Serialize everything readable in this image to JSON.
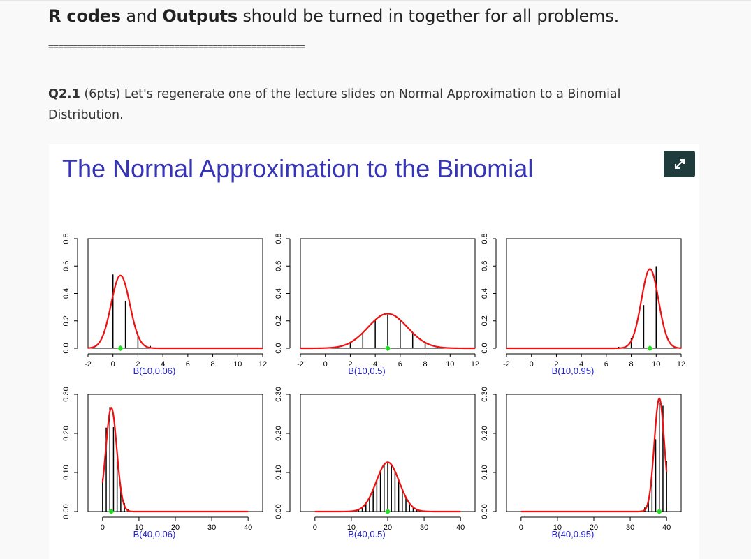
{
  "header": {
    "part1": "R codes",
    "part2": " and ",
    "part3": "Outputs",
    "part4": " should be turned in together for all problems.",
    "rule": "====================================================="
  },
  "question": {
    "label": "Q2.1",
    "text": " (6pts) Let's regenerate one of the lecture slides on Normal Approximation to a Binomial Distribution."
  },
  "slide": {
    "title": "The Normal Approximation to the Binomial",
    "expand_icon": "expand-arrows-icon"
  },
  "colors": {
    "curve": "#ee1111",
    "mean_marker": "#22dd22",
    "subtitle": "#2222cc",
    "title": "#3535b5"
  },
  "chart_data": [
    {
      "type": "bar",
      "subtitle": "B(10,0.06)",
      "n": 10,
      "p": 0.06,
      "xlim": [
        -2,
        12
      ],
      "xticks": [
        -2,
        0,
        2,
        4,
        6,
        8,
        10,
        12
      ],
      "ylim": [
        0,
        0.8
      ],
      "yticks": [
        "0.0",
        "0.2",
        "0.4",
        "0.6",
        "0.8"
      ],
      "ytick_values": [
        0,
        0.2,
        0.4,
        0.6,
        0.8
      ]
    },
    {
      "type": "bar",
      "subtitle": "B(10,0.5)",
      "n": 10,
      "p": 0.5,
      "xlim": [
        -2,
        12
      ],
      "xticks": [
        -2,
        0,
        2,
        4,
        6,
        8,
        10,
        12
      ],
      "ylim": [
        0,
        0.8
      ],
      "yticks": [
        "0.0",
        "0.2",
        "0.4",
        "0.6",
        "0.8"
      ],
      "ytick_values": [
        0,
        0.2,
        0.4,
        0.6,
        0.8
      ]
    },
    {
      "type": "bar",
      "subtitle": "B(10,0.95)",
      "n": 10,
      "p": 0.95,
      "xlim": [
        -2,
        12
      ],
      "xticks": [
        -2,
        0,
        2,
        4,
        6,
        8,
        10,
        12
      ],
      "ylim": [
        0,
        0.8
      ],
      "yticks": [
        "0.0",
        "0.2",
        "0.4",
        "0.6",
        "0.8"
      ],
      "ytick_values": [
        0,
        0.2,
        0.4,
        0.6,
        0.8
      ]
    },
    {
      "type": "bar",
      "subtitle": "B(40,0.06)",
      "n": 40,
      "p": 0.06,
      "xlim": [
        -4,
        44
      ],
      "xticks": [
        0,
        10,
        20,
        30,
        40
      ],
      "ylim": [
        0,
        0.3
      ],
      "yticks": [
        "0.00",
        "0.10",
        "0.20",
        "0.30"
      ],
      "ytick_values": [
        0,
        0.1,
        0.2,
        0.3
      ]
    },
    {
      "type": "bar",
      "subtitle": "B(40,0.5)",
      "n": 40,
      "p": 0.5,
      "xlim": [
        -4,
        44
      ],
      "xticks": [
        0,
        10,
        20,
        30,
        40
      ],
      "ylim": [
        0,
        0.3
      ],
      "yticks": [
        "0.00",
        "0.10",
        "0.20",
        "0.30"
      ],
      "ytick_values": [
        0,
        0.1,
        0.2,
        0.3
      ]
    },
    {
      "type": "bar",
      "subtitle": "B(40,0.95)",
      "n": 40,
      "p": 0.95,
      "xlim": [
        -4,
        44
      ],
      "xticks": [
        0,
        10,
        20,
        30,
        40
      ],
      "ylim": [
        0,
        0.3
      ],
      "yticks": [
        "0.00",
        "0.10",
        "0.20",
        "0.30"
      ],
      "ytick_values": [
        0,
        0.1,
        0.2,
        0.3
      ]
    }
  ]
}
